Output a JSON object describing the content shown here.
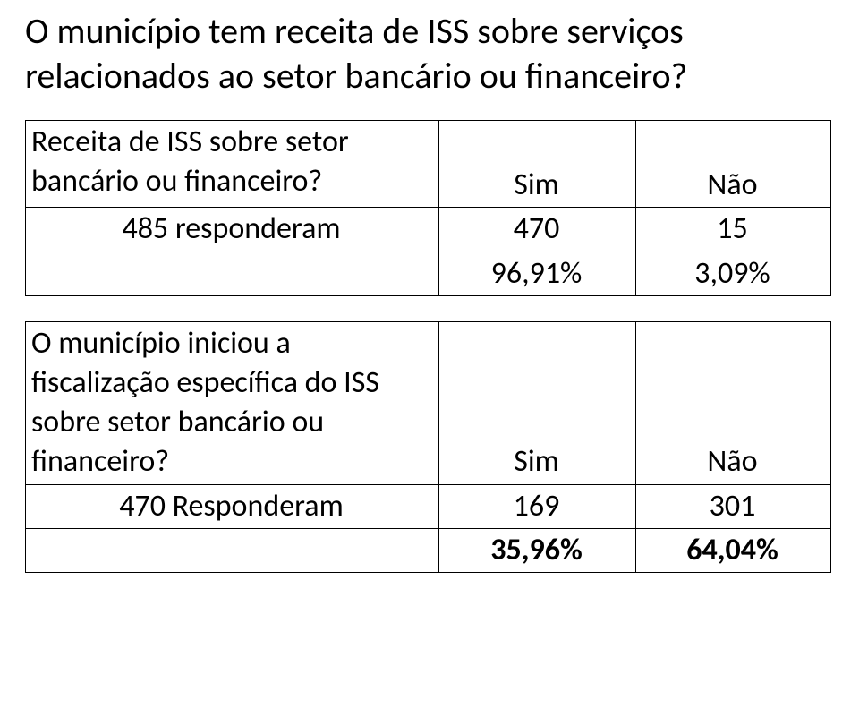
{
  "title_line1": "O município tem receita de ISS sobre serviços",
  "title_line2": "relacionados ao setor bancário ou financeiro?",
  "table1": {
    "header_desc": "Receita de ISS sobre setor bancário ou financeiro?",
    "col_sim": "Sim",
    "col_nao": "Não",
    "row_label": "485 responderam",
    "val_sim": "470",
    "val_nao": "15",
    "pct_sim": "96,91%",
    "pct_nao": "3,09%"
  },
  "table2": {
    "header_desc": "O município iniciou a fiscalização específica do ISS sobre setor bancário ou financeiro?",
    "col_sim": "Sim",
    "col_nao": "Não",
    "row_label": "470 Responderam",
    "val_sim": "169",
    "val_nao": "301",
    "pct_sim": "35,96%",
    "pct_nao": "64,04%"
  },
  "style": {
    "background_color": "#ffffff",
    "text_color": "#000000",
    "border_color": "#000000",
    "font_family": "Calibri",
    "title_fontsize_pt": 30,
    "cell_fontsize_pt": 26,
    "bold_last_row_table2": true
  }
}
